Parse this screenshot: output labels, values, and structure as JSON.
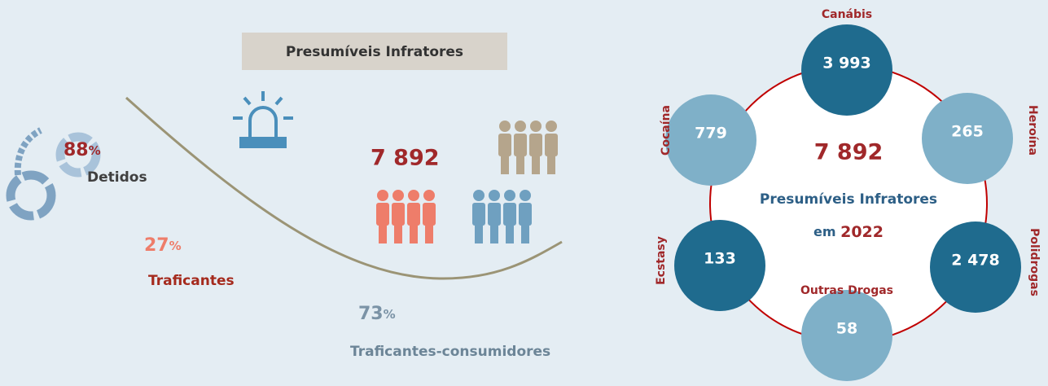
{
  "header": {
    "title": "Presumíveis Infratores"
  },
  "left": {
    "total": "7 892",
    "detidos": {
      "value": "88",
      "unit": "%",
      "label": "Detidos"
    },
    "traficantes": {
      "value": "27",
      "unit": "%",
      "label": "Traficantes"
    },
    "traficantes_consumidores": {
      "value": "73",
      "unit": "%",
      "label": "Traficantes-consumidores"
    }
  },
  "right": {
    "total": "7 892",
    "label": "Presumíveis Infratores",
    "year_prefix": "em",
    "year": "2022",
    "drugs": [
      {
        "name": "Canábis",
        "value": "3 993"
      },
      {
        "name": "Heroína",
        "value": "265"
      },
      {
        "name": "Polidrogas",
        "value": "2 478"
      },
      {
        "name": "Outras Drogas",
        "value": "58"
      },
      {
        "name": "Ecstasy",
        "value": "133"
      },
      {
        "name": "Cocaína",
        "value": "779"
      }
    ]
  }
}
